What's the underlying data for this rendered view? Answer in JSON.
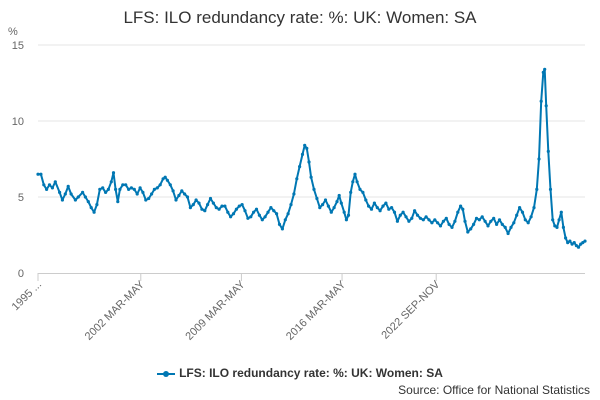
{
  "chart_data": {
    "type": "line",
    "title": "LFS: ILO redundancy rate: %: UK: Women: SA",
    "ylabel": "%",
    "xlabel": "",
    "ylim": [
      0,
      15
    ],
    "yticks": [
      "0",
      "5",
      "10",
      "15"
    ],
    "x_tick_labels": [
      "1995 ...",
      "2002 MAR-MAY",
      "2009 MAR-MAY",
      "2016 MAR-MAY",
      "2022 SEP-NOV"
    ],
    "x_tick_years": [
      1995.1,
      2002.25,
      2009.25,
      2016.25,
      2022.8
    ],
    "grid": true,
    "legend": "bottom",
    "series": [
      {
        "name": "LFS: ILO redundancy rate: %: UK: Women: SA",
        "color": "#0077b3",
        "points": [
          [
            1995.1,
            6.5
          ],
          [
            1995.3,
            6.5
          ],
          [
            1995.5,
            5.8
          ],
          [
            1995.7,
            5.5
          ],
          [
            1995.9,
            5.8
          ],
          [
            1996.1,
            5.6
          ],
          [
            1996.3,
            6.0
          ],
          [
            1996.6,
            5.3
          ],
          [
            1996.8,
            4.8
          ],
          [
            1997.0,
            5.2
          ],
          [
            1997.2,
            5.7
          ],
          [
            1997.4,
            5.2
          ],
          [
            1997.7,
            4.8
          ],
          [
            1997.9,
            5.0
          ],
          [
            1998.2,
            5.3
          ],
          [
            1998.4,
            5.0
          ],
          [
            1998.6,
            4.7
          ],
          [
            1998.8,
            4.3
          ],
          [
            1999.0,
            4.0
          ],
          [
            1999.2,
            4.5
          ],
          [
            1999.4,
            5.5
          ],
          [
            1999.6,
            5.6
          ],
          [
            1999.8,
            5.3
          ],
          [
            2000.0,
            5.5
          ],
          [
            2000.2,
            6.0
          ],
          [
            2000.35,
            6.6
          ],
          [
            2000.5,
            5.5
          ],
          [
            2000.65,
            4.7
          ],
          [
            2000.8,
            5.5
          ],
          [
            2001.0,
            5.8
          ],
          [
            2001.2,
            5.8
          ],
          [
            2001.4,
            5.5
          ],
          [
            2001.6,
            5.6
          ],
          [
            2001.8,
            5.5
          ],
          [
            2002.0,
            5.2
          ],
          [
            2002.2,
            5.6
          ],
          [
            2002.4,
            5.3
          ],
          [
            2002.6,
            4.8
          ],
          [
            2002.8,
            4.9
          ],
          [
            2003.0,
            5.2
          ],
          [
            2003.2,
            5.5
          ],
          [
            2003.4,
            5.6
          ],
          [
            2003.6,
            5.8
          ],
          [
            2003.8,
            6.2
          ],
          [
            2003.95,
            6.3
          ],
          [
            2004.1,
            6.1
          ],
          [
            2004.3,
            5.8
          ],
          [
            2004.5,
            5.4
          ],
          [
            2004.7,
            4.8
          ],
          [
            2004.9,
            5.1
          ],
          [
            2005.1,
            5.4
          ],
          [
            2005.3,
            5.2
          ],
          [
            2005.5,
            5.0
          ],
          [
            2005.7,
            4.3
          ],
          [
            2005.9,
            4.5
          ],
          [
            2006.1,
            4.8
          ],
          [
            2006.3,
            4.6
          ],
          [
            2006.5,
            4.2
          ],
          [
            2006.7,
            4.1
          ],
          [
            2006.9,
            4.5
          ],
          [
            2007.1,
            4.9
          ],
          [
            2007.3,
            4.6
          ],
          [
            2007.5,
            4.3
          ],
          [
            2007.7,
            4.2
          ],
          [
            2007.9,
            4.4
          ],
          [
            2008.1,
            4.4
          ],
          [
            2008.3,
            4.0
          ],
          [
            2008.5,
            3.7
          ],
          [
            2008.7,
            3.9
          ],
          [
            2008.9,
            4.2
          ],
          [
            2009.1,
            4.4
          ],
          [
            2009.3,
            4.5
          ],
          [
            2009.5,
            4.1
          ],
          [
            2009.7,
            3.6
          ],
          [
            2009.9,
            3.7
          ],
          [
            2010.1,
            4.0
          ],
          [
            2010.3,
            4.2
          ],
          [
            2010.5,
            3.8
          ],
          [
            2010.7,
            3.5
          ],
          [
            2010.9,
            3.7
          ],
          [
            2011.1,
            4.0
          ],
          [
            2011.3,
            4.3
          ],
          [
            2011.5,
            4.1
          ],
          [
            2011.7,
            3.9
          ],
          [
            2011.9,
            3.2
          ],
          [
            2012.1,
            2.9
          ],
          [
            2012.3,
            3.5
          ],
          [
            2012.5,
            3.9
          ],
          [
            2012.7,
            4.5
          ],
          [
            2012.9,
            5.2
          ],
          [
            2013.1,
            6.2
          ],
          [
            2013.3,
            7.0
          ],
          [
            2013.5,
            7.8
          ],
          [
            2013.65,
            8.4
          ],
          [
            2013.8,
            8.2
          ],
          [
            2013.95,
            7.3
          ],
          [
            2014.1,
            6.3
          ],
          [
            2014.3,
            5.5
          ],
          [
            2014.5,
            4.9
          ],
          [
            2014.7,
            4.3
          ],
          [
            2014.9,
            4.5
          ],
          [
            2015.1,
            4.8
          ],
          [
            2015.3,
            4.4
          ],
          [
            2015.5,
            4.0
          ],
          [
            2015.7,
            4.3
          ],
          [
            2015.9,
            4.7
          ],
          [
            2016.05,
            5.1
          ],
          [
            2016.2,
            4.6
          ],
          [
            2016.4,
            4.0
          ],
          [
            2016.55,
            3.5
          ],
          [
            2016.7,
            3.8
          ],
          [
            2016.85,
            5.3
          ],
          [
            2017.0,
            6.0
          ],
          [
            2017.15,
            6.5
          ],
          [
            2017.3,
            6.0
          ],
          [
            2017.5,
            5.5
          ],
          [
            2017.7,
            5.3
          ],
          [
            2017.9,
            4.8
          ],
          [
            2018.1,
            4.4
          ],
          [
            2018.3,
            4.2
          ],
          [
            2018.5,
            4.6
          ],
          [
            2018.7,
            4.3
          ],
          [
            2018.9,
            4.1
          ],
          [
            2019.1,
            4.4
          ],
          [
            2019.3,
            4.6
          ],
          [
            2019.5,
            4.2
          ],
          [
            2019.7,
            4.3
          ],
          [
            2019.9,
            4.0
          ],
          [
            2020.1,
            3.4
          ],
          [
            2020.3,
            3.8
          ],
          [
            2020.5,
            4.0
          ],
          [
            2020.7,
            3.7
          ],
          [
            2020.9,
            3.4
          ],
          [
            2021.1,
            3.6
          ],
          [
            2021.3,
            4.1
          ],
          [
            2021.5,
            3.8
          ],
          [
            2021.7,
            3.6
          ],
          [
            2021.9,
            3.5
          ],
          [
            2022.1,
            3.7
          ],
          [
            2022.3,
            3.5
          ],
          [
            2022.5,
            3.3
          ],
          [
            2022.7,
            3.5
          ],
          [
            2022.9,
            3.3
          ],
          [
            2023.1,
            3.1
          ],
          [
            2023.3,
            3.4
          ],
          [
            2023.5,
            3.6
          ],
          [
            2023.7,
            3.2
          ],
          [
            2023.9,
            3.0
          ],
          [
            2024.1,
            3.4
          ],
          [
            2024.3,
            4.0
          ],
          [
            2024.5,
            4.4
          ],
          [
            2024.65,
            4.2
          ],
          [
            2024.8,
            3.4
          ],
          [
            2025.0,
            2.7
          ],
          [
            2025.2,
            2.9
          ],
          [
            2025.4,
            3.2
          ],
          [
            2025.6,
            3.6
          ],
          [
            2025.8,
            3.5
          ],
          [
            2026.0,
            3.7
          ],
          [
            2026.2,
            3.4
          ],
          [
            2026.4,
            3.1
          ],
          [
            2026.6,
            3.4
          ],
          [
            2026.8,
            3.6
          ],
          [
            2027.0,
            3.2
          ],
          [
            2027.2,
            3.5
          ],
          [
            2027.4,
            3.2
          ],
          [
            2027.6,
            3.0
          ],
          [
            2027.8,
            2.6
          ],
          [
            2028.0,
            3.0
          ],
          [
            2028.2,
            3.3
          ],
          [
            2028.4,
            3.8
          ],
          [
            2028.6,
            4.3
          ],
          [
            2028.8,
            4.0
          ],
          [
            2029.0,
            3.5
          ],
          [
            2029.2,
            3.3
          ],
          [
            2029.4,
            3.7
          ],
          [
            2029.6,
            4.3
          ],
          [
            2029.8,
            5.5
          ],
          [
            2029.95,
            7.5
          ],
          [
            2030.1,
            11.3
          ],
          [
            2030.25,
            13.2
          ],
          [
            2030.35,
            13.4
          ],
          [
            2030.45,
            11.0
          ],
          [
            2030.6,
            8.0
          ],
          [
            2030.75,
            5.5
          ],
          [
            2030.9,
            3.5
          ],
          [
            2031.05,
            3.1
          ],
          [
            2031.2,
            3.0
          ],
          [
            2031.35,
            3.5
          ],
          [
            2031.5,
            4.0
          ],
          [
            2031.65,
            3.0
          ],
          [
            2031.8,
            2.3
          ],
          [
            2031.95,
            2.0
          ],
          [
            2032.1,
            2.1
          ],
          [
            2032.25,
            1.9
          ],
          [
            2032.4,
            2.0
          ],
          [
            2032.55,
            1.8
          ],
          [
            2032.7,
            1.7
          ],
          [
            2032.85,
            1.9
          ],
          [
            2033.0,
            2.0
          ],
          [
            2033.15,
            2.1
          ]
        ]
      }
    ]
  },
  "source": "Source: Office for National Statistics"
}
